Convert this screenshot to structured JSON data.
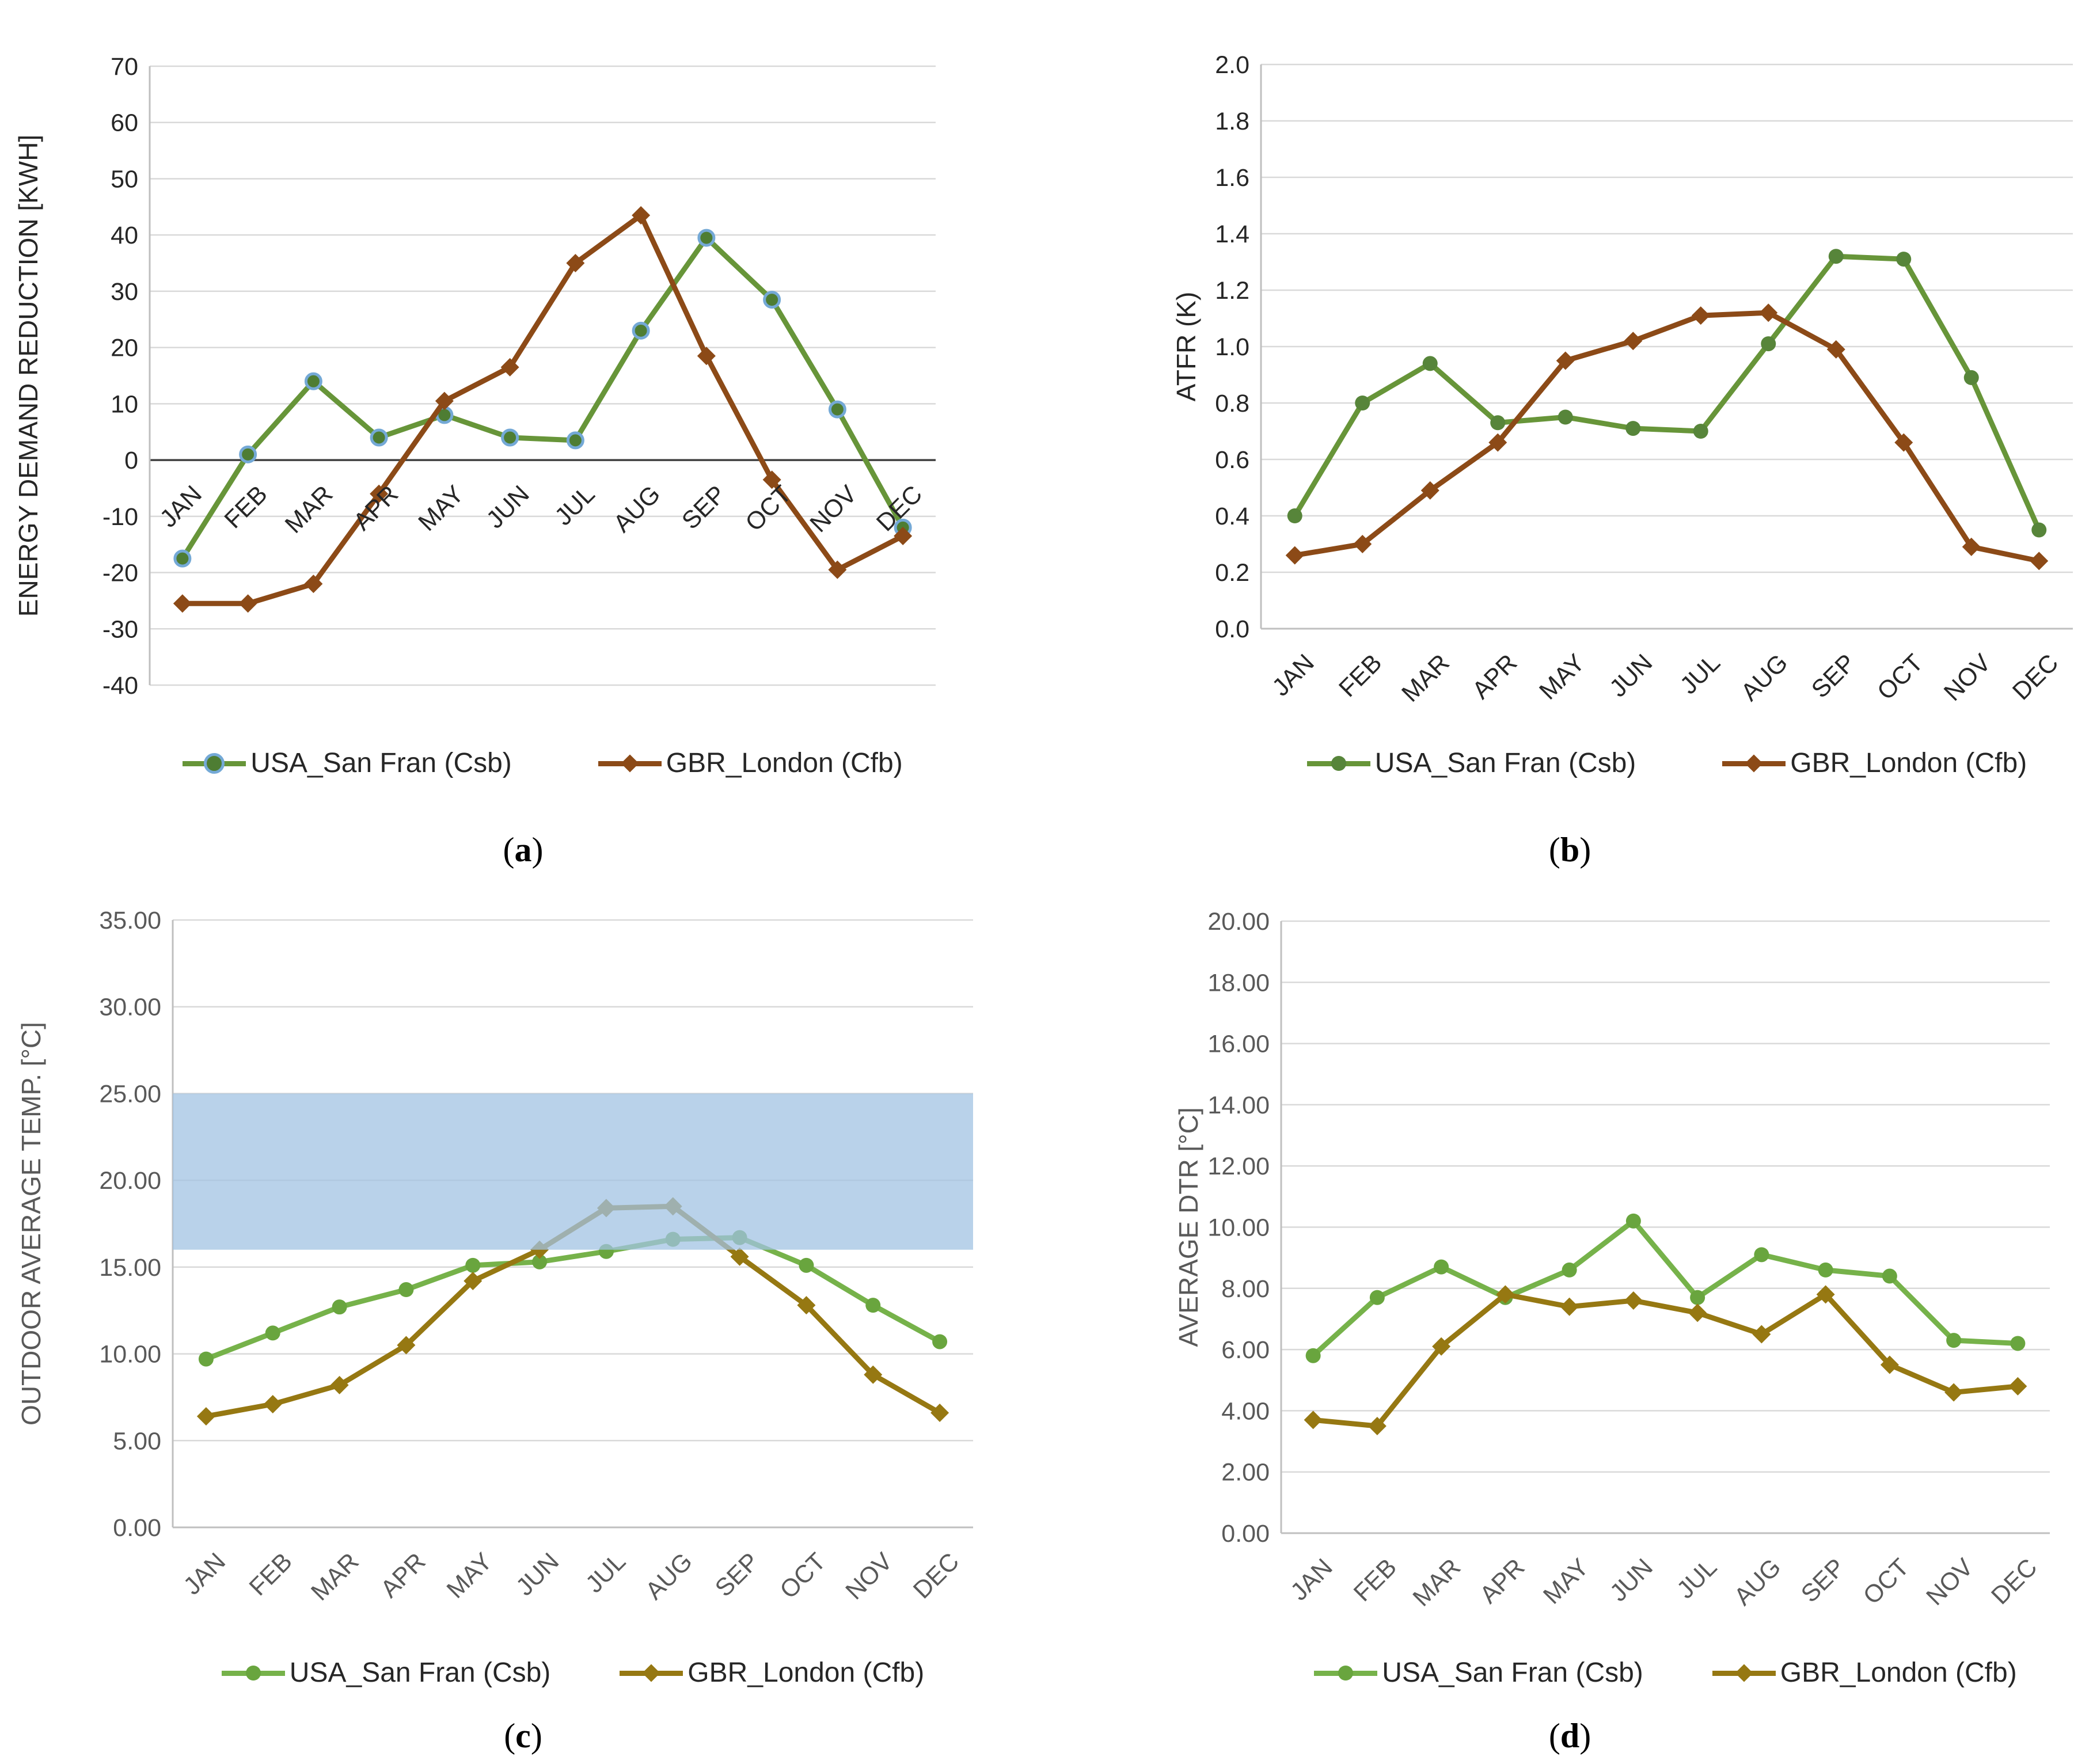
{
  "months": [
    "JAN",
    "FEB",
    "MAR",
    "APR",
    "MAY",
    "JUN",
    "JUL",
    "AUG",
    "SEP",
    "OCT",
    "NOV",
    "DEC"
  ],
  "colors": {
    "green_ab": "#679539",
    "green_ab_marker_fill": "#4e7d33",
    "green_ab_marker_ring": "#74a9d6",
    "brown_ab": "#8c4a17",
    "green_cd": "#76b24a",
    "olive_cd": "#967812",
    "gridline": "#d9d9d9",
    "zero_line": "#404040",
    "axis_line": "#bfbfbf",
    "band_blue": "#a2c3e3",
    "text_dark": "#262626",
    "text_gray": "#595959"
  },
  "chart_data": [
    {
      "id": "a",
      "type": "line",
      "title": "",
      "xlabel": "",
      "ylabel": "ENERGY DEMAND REDUCTION [KWH]",
      "ylim": [
        -40,
        70
      ],
      "ytick_step": 10,
      "ytick_decimals": 0,
      "grid": true,
      "zero_axis_dark": true,
      "xlabels_at": "zero",
      "axis_text_color": "#262626",
      "legend_position": "bottom",
      "categories": [
        "JAN",
        "FEB",
        "MAR",
        "APR",
        "MAY",
        "JUN",
        "JUL",
        "AUG",
        "SEP",
        "OCT",
        "NOV",
        "DEC"
      ],
      "series": [
        {
          "name": "USA_San Fran (Csb)",
          "color": "#679539",
          "marker": "circle",
          "marker_fill": "#4e7d33",
          "marker_ring": "#74a9d6",
          "values": [
            -17.5,
            1,
            14,
            4,
            8,
            4,
            3.5,
            23,
            39.5,
            28.5,
            9,
            -12
          ]
        },
        {
          "name": "GBR_London (Cfb)",
          "color": "#8c4a17",
          "marker": "diamond",
          "marker_fill": "#8c4a17",
          "values": [
            -25.5,
            -25.5,
            -22,
            -6,
            10.5,
            16.5,
            35,
            43.5,
            18.5,
            -3.5,
            -19.5,
            -13.5
          ]
        }
      ],
      "caption_prefix": "(",
      "caption_letter": "a",
      "caption_suffix": ")"
    },
    {
      "id": "b",
      "type": "line",
      "title": "",
      "xlabel": "",
      "ylabel": "ATFR (K)",
      "ylim": [
        0,
        2.0
      ],
      "ytick_step": 0.2,
      "ytick_decimals": 1,
      "grid": true,
      "zero_axis_dark": false,
      "xlabels_at": "bottom",
      "axis_text_color": "#262626",
      "legend_position": "bottom",
      "categories": [
        "JAN",
        "FEB",
        "MAR",
        "APR",
        "MAY",
        "JUN",
        "JUL",
        "AUG",
        "SEP",
        "OCT",
        "NOV",
        "DEC"
      ],
      "series": [
        {
          "name": "USA_San Fran (Csb)",
          "color": "#679539",
          "marker": "circle",
          "marker_fill": "#57853a",
          "values": [
            0.4,
            0.8,
            0.94,
            0.73,
            0.75,
            0.71,
            0.7,
            1.01,
            1.32,
            1.31,
            0.89,
            0.35
          ]
        },
        {
          "name": "GBR_London (Cfb)",
          "color": "#8c4a17",
          "marker": "diamond",
          "marker_fill": "#8c4a17",
          "values": [
            0.26,
            0.3,
            0.49,
            0.66,
            0.95,
            1.02,
            1.11,
            1.12,
            0.99,
            0.66,
            0.29,
            0.24
          ]
        }
      ],
      "caption_prefix": "(",
      "caption_letter": "b",
      "caption_suffix": ")"
    },
    {
      "id": "c",
      "type": "line",
      "title": "",
      "xlabel": "",
      "ylabel": "OUTDOOR AVERAGE TEMP. [°C]",
      "ylim": [
        0,
        35
      ],
      "ytick_step": 5,
      "ytick_decimals": 2,
      "grid": true,
      "zero_axis_dark": false,
      "xlabels_at": "bottom",
      "axis_text_color": "#595959",
      "legend_position": "bottom",
      "band": {
        "from": 16,
        "to": 25,
        "color": "#a2c3e3",
        "opacity": 0.75
      },
      "categories": [
        "JAN",
        "FEB",
        "MAR",
        "APR",
        "MAY",
        "JUN",
        "JUL",
        "AUG",
        "SEP",
        "OCT",
        "NOV",
        "DEC"
      ],
      "series": [
        {
          "name": "USA_San Fran (Csb)",
          "color": "#76b24a",
          "marker": "circle",
          "marker_fill": "#69a53e",
          "values": [
            9.7,
            11.2,
            12.7,
            13.7,
            15.1,
            15.3,
            15.9,
            16.6,
            16.7,
            15.1,
            12.8,
            10.7
          ]
        },
        {
          "name": "GBR_London (Cfb)",
          "color": "#967812",
          "marker": "diamond",
          "marker_fill": "#967812",
          "values": [
            6.4,
            7.1,
            8.2,
            10.5,
            14.2,
            16.0,
            18.4,
            18.5,
            15.6,
            12.8,
            8.8,
            6.6
          ]
        }
      ],
      "caption_prefix": "(",
      "caption_letter": "c",
      "caption_suffix": ")"
    },
    {
      "id": "d",
      "type": "line",
      "title": "",
      "xlabel": "",
      "ylabel": "AVERAGE DTR [°C]",
      "ylim": [
        0,
        20
      ],
      "ytick_step": 2,
      "ytick_decimals": 2,
      "grid": true,
      "zero_axis_dark": false,
      "xlabels_at": "bottom",
      "axis_text_color": "#595959",
      "legend_position": "bottom",
      "categories": [
        "JAN",
        "FEB",
        "MAR",
        "APR",
        "MAY",
        "JUN",
        "JUL",
        "AUG",
        "SEP",
        "OCT",
        "NOV",
        "DEC"
      ],
      "series": [
        {
          "name": "USA_San Fran (Csb)",
          "color": "#76b24a",
          "marker": "circle",
          "marker_fill": "#69a53e",
          "values": [
            5.8,
            7.7,
            8.7,
            7.7,
            8.6,
            10.2,
            7.7,
            9.1,
            8.6,
            8.4,
            6.3,
            6.2
          ]
        },
        {
          "name": "GBR_London (Cfb)",
          "color": "#967812",
          "marker": "diamond",
          "marker_fill": "#967812",
          "values": [
            3.7,
            3.5,
            6.1,
            7.8,
            7.4,
            7.6,
            7.2,
            6.5,
            7.8,
            5.5,
            4.6,
            4.8
          ]
        }
      ],
      "caption_prefix": "(",
      "caption_letter": "d",
      "caption_suffix": ")"
    }
  ]
}
